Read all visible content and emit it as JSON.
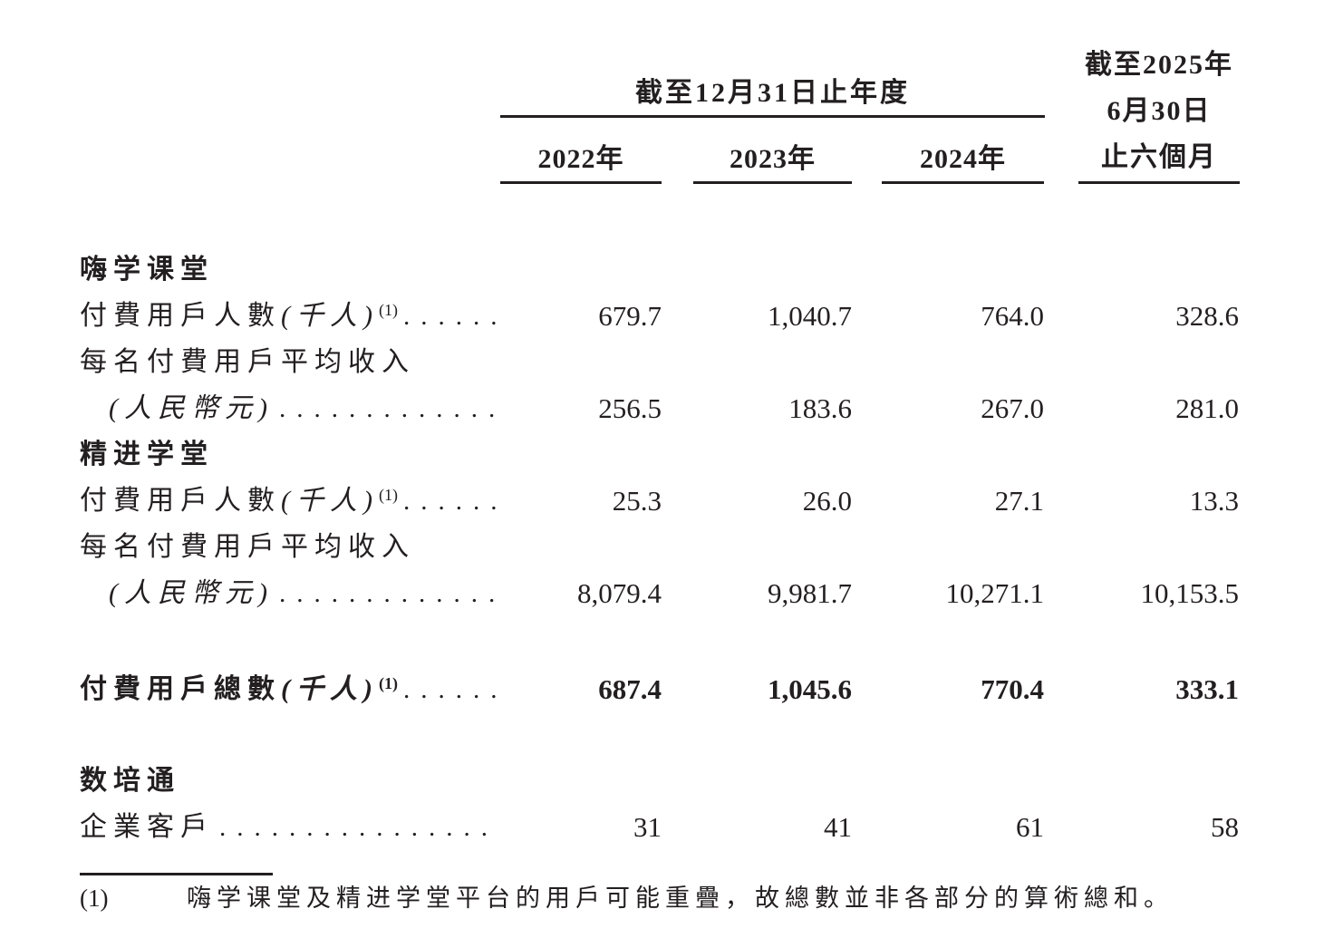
{
  "document": {
    "header": {
      "period_ended_dec31": "截至12月31日止年度",
      "years": [
        "2022年",
        "2023年",
        "2024年"
      ],
      "h1_2025": [
        "截至2025年",
        "6月30日",
        "止六個月"
      ]
    },
    "leader_dots": "........................................",
    "rows": [
      {
        "type": "section",
        "label": "嗨学课堂"
      },
      {
        "type": "data",
        "label": "付費用戶人數",
        "paren": "(千人)",
        "sup": "(1)",
        "values": [
          "679.7",
          "1,040.7",
          "764.0",
          "328.6"
        ]
      },
      {
        "type": "plain",
        "label": "每名付費用戶平均收入"
      },
      {
        "type": "data-indent",
        "paren": "(人民幣元)",
        "values": [
          "256.5",
          "183.6",
          "267.0",
          "281.0"
        ]
      },
      {
        "type": "section",
        "label": "精进学堂"
      },
      {
        "type": "data",
        "label": "付費用戶人數",
        "paren": "(千人)",
        "sup": "(1)",
        "values": [
          "25.3",
          "26.0",
          "27.1",
          "13.3"
        ]
      },
      {
        "type": "plain",
        "label": "每名付費用戶平均收入"
      },
      {
        "type": "data-indent",
        "paren": "(人民幣元)",
        "values": [
          "8,079.4",
          "9,981.7",
          "10,271.1",
          "10,153.5"
        ]
      },
      {
        "type": "total",
        "label": "付費用戶總數",
        "paren": "(千人)",
        "sup": "(1)",
        "values": [
          "687.4",
          "1,045.6",
          "770.4",
          "333.1"
        ]
      },
      {
        "type": "section",
        "label": "数培通"
      },
      {
        "type": "data",
        "label": "企業客戶",
        "values": [
          "31",
          "41",
          "61",
          "58"
        ]
      }
    ],
    "footnote": {
      "marker": "(1)",
      "text": "嗨学课堂及精进学堂平台的用戶可能重疊，故總數並非各部分的算術總和。"
    }
  }
}
